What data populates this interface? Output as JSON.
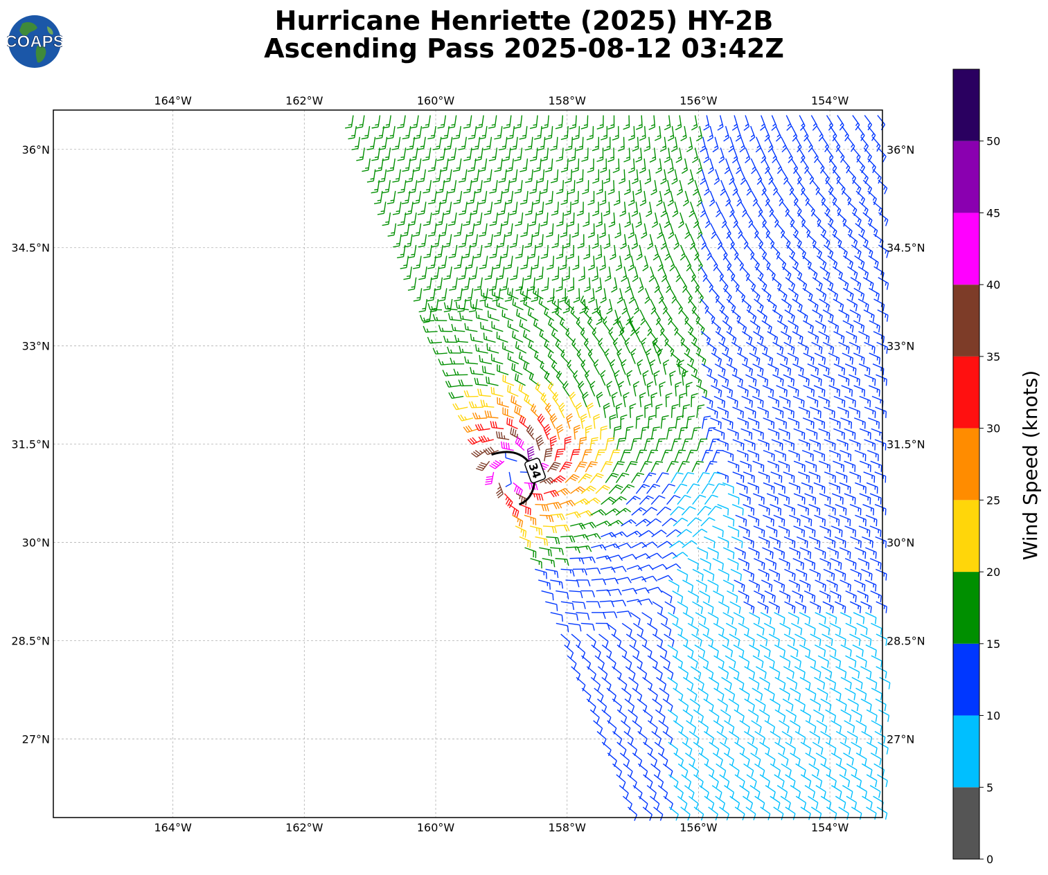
{
  "title": {
    "line1": "Hurricane Henriette (2025) HY-2B",
    "line2": "Ascending Pass 2025-08-12 03:42Z"
  },
  "logo": {
    "text": "COAPS",
    "icon": "globe-icon"
  },
  "map": {
    "lon_ticks": [
      "164°W",
      "162°W",
      "160°W",
      "158°W",
      "156°W",
      "154°W"
    ],
    "lat_ticks": [
      "36°N",
      "34.5°N",
      "33°N",
      "31.5°N",
      "30°N",
      "28.5°N",
      "27°N"
    ],
    "lon_range": [
      -165.82,
      -153.2
    ],
    "lat_range": [
      25.8,
      36.6
    ],
    "gridlines": true,
    "storm_center": {
      "lon": -158.75,
      "lat": 31.15
    },
    "radius_contour": {
      "label": "34"
    }
  },
  "colorbar": {
    "label": "Wind Speed (knots)",
    "ticks": [
      "0",
      "5",
      "10",
      "15",
      "20",
      "25",
      "30",
      "35",
      "40",
      "45",
      "50"
    ],
    "bins": [
      {
        "min": 0,
        "max": 5,
        "color": "#555555"
      },
      {
        "min": 5,
        "max": 10,
        "color": "#00bfff"
      },
      {
        "min": 10,
        "max": 15,
        "color": "#0037ff"
      },
      {
        "min": 15,
        "max": 20,
        "color": "#008f00"
      },
      {
        "min": 20,
        "max": 25,
        "color": "#ffd60a"
      },
      {
        "min": 25,
        "max": 30,
        "color": "#ff8c00"
      },
      {
        "min": 30,
        "max": 35,
        "color": "#ff1010"
      },
      {
        "min": 35,
        "max": 40,
        "color": "#7d3c28"
      },
      {
        "min": 40,
        "max": 45,
        "color": "#ff00ff"
      },
      {
        "min": 45,
        "max": 50,
        "color": "#8a00b0"
      },
      {
        "min": 50,
        "max": 55,
        "color": "#2a0060"
      }
    ]
  },
  "chart_data": {
    "type": "wind-barb map",
    "title": "Hurricane Henriette (2025) HY-2B Ascending Pass 2025-08-12 03:42Z",
    "legend": "colorbar-right",
    "swath": {
      "west_edge": [
        [
          -161.3,
          36.6
        ],
        [
          -157.0,
          25.8
        ]
      ],
      "east_edge": [
        [
          -153.2,
          36.6
        ],
        [
          -153.2,
          25.8
        ]
      ]
    },
    "speed_regions": [
      {
        "description": "northern swath (west part)",
        "speed_kt": 17
      },
      {
        "description": "northern swath (east part)",
        "speed_kt": 12
      },
      {
        "description": "southern swath",
        "speed_kt": 9
      },
      {
        "description": "near storm center",
        "speed_kt": 42
      }
    ]
  }
}
